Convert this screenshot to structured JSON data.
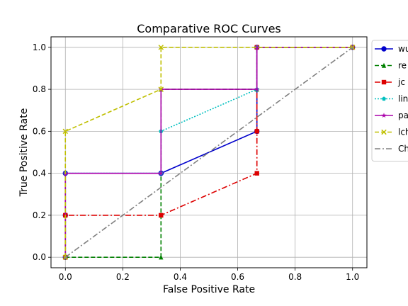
{
  "chart_data": {
    "type": "line",
    "title": "Comparative ROC Curves",
    "xlabel": "False Positive Rate",
    "ylabel": "True Positive Rate",
    "xlim": [
      -0.05,
      1.05
    ],
    "ylim": [
      -0.05,
      1.05
    ],
    "xticks": [
      "0.0",
      "0.2",
      "0.4",
      "0.6",
      "0.8",
      "1.0"
    ],
    "yticks": [
      "0.0",
      "0.2",
      "0.4",
      "0.6",
      "0.8",
      "1.0"
    ],
    "grid": true,
    "legend_position": "right (outside plot area, clipped)",
    "series": [
      {
        "name": "wu",
        "color": "#0000cc",
        "dash": "solid",
        "marker": "circle",
        "x": [
          0,
          0,
          0,
          0.333,
          0.333,
          0.667,
          0.667,
          1.0
        ],
        "y": [
          0,
          0.2,
          0.4,
          0.4,
          0.4,
          0.6,
          1.0,
          1.0
        ]
      },
      {
        "name": "re",
        "color": "#008000",
        "dash": "dashed",
        "marker": "triangle",
        "x": [
          0,
          0.333,
          0.333,
          0.333,
          0.667,
          0.667,
          1.0
        ],
        "y": [
          0,
          0,
          0.2,
          0.8,
          0.8,
          1.0,
          1.0
        ]
      },
      {
        "name": "jc",
        "color": "#dd0000",
        "dash": "dashdot",
        "marker": "square",
        "x": [
          0,
          0,
          0.333,
          0.667,
          0.667,
          0.667,
          1.0
        ],
        "y": [
          0,
          0.2,
          0.2,
          0.4,
          0.6,
          1.0,
          1.0
        ]
      },
      {
        "name": "lin",
        "color": "#00bfbf",
        "dash": "dotted",
        "marker": "pentagon",
        "x": [
          0,
          0,
          0.333,
          0.333,
          0.667,
          0.667,
          1.0
        ],
        "y": [
          0,
          0.4,
          0.4,
          0.6,
          0.8,
          1.0,
          1.0
        ]
      },
      {
        "name": "pa",
        "color": "#aa00aa",
        "dash": "solid",
        "marker": "star",
        "x": [
          0,
          0,
          0.333,
          0.333,
          0.667,
          0.667,
          1.0
        ],
        "y": [
          0,
          0.4,
          0.4,
          0.8,
          0.8,
          1.0,
          1.0
        ]
      },
      {
        "name": "lch",
        "color": "#bfbf00",
        "dash": "dashed",
        "marker": "x",
        "x": [
          0,
          0,
          0.333,
          0.333,
          1.0
        ],
        "y": [
          0,
          0.6,
          0.8,
          1.0,
          1.0
        ]
      },
      {
        "name": "Ch",
        "color": "#808080",
        "dash": "dashdot",
        "marker": "none",
        "x": [
          0,
          1.0
        ],
        "y": [
          0,
          1.0
        ]
      }
    ]
  }
}
